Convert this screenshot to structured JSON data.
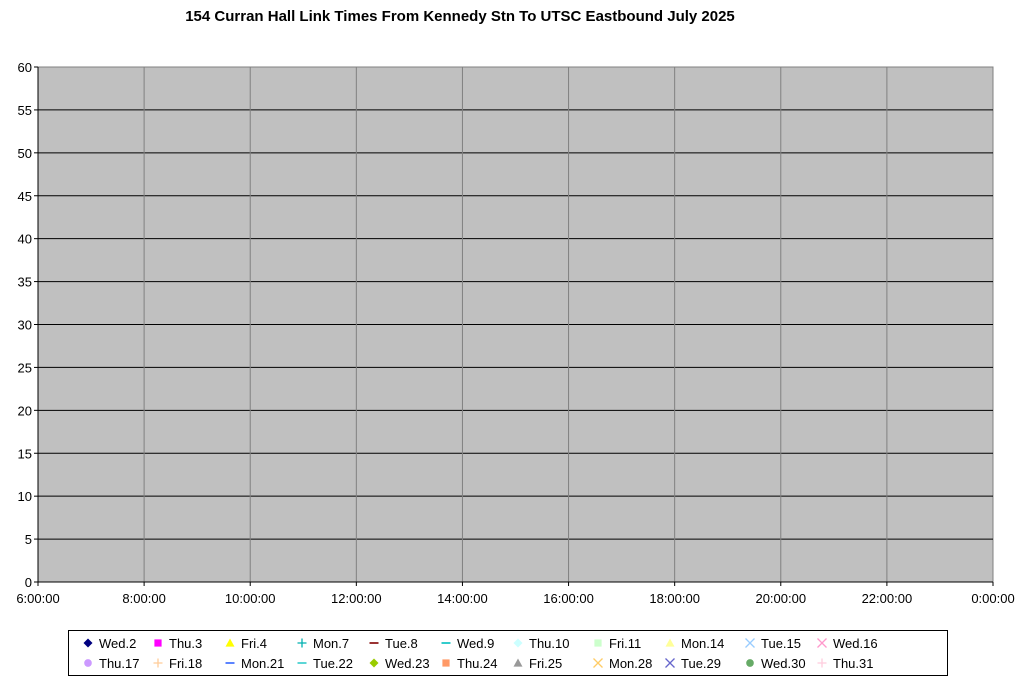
{
  "chart_data": {
    "type": "scatter",
    "title": "154 Curran Hall Link Times From Kennedy Stn To UTSC Eastbound July 2025",
    "xlabel": "",
    "ylabel": "",
    "ylim": [
      0,
      60
    ],
    "yticks": [
      "0",
      "5",
      "10",
      "15",
      "20",
      "25",
      "30",
      "35",
      "40",
      "45",
      "50",
      "55",
      "60"
    ],
    "xlim": [
      "6:00:00",
      "0:00:00"
    ],
    "xticks": [
      "6:00:00",
      "8:00:00",
      "10:00:00",
      "12:00:00",
      "14:00:00",
      "16:00:00",
      "18:00:00",
      "20:00:00",
      "22:00:00",
      "0:00:00"
    ],
    "grid": true,
    "legend_position": "bottom",
    "series": [
      {
        "name": "Wed.2",
        "marker": "diamond",
        "color": "#000080"
      },
      {
        "name": "Thu.3",
        "marker": "square",
        "color": "#ff00ff"
      },
      {
        "name": "Fri.4",
        "marker": "triangle",
        "color": "#ffff00"
      },
      {
        "name": "Mon.7",
        "marker": "plus",
        "color": "#00b0b0"
      },
      {
        "name": "Tue.8",
        "marker": "dash",
        "color": "#800000"
      },
      {
        "name": "Wed.9",
        "marker": "dash",
        "color": "#00c0c0"
      },
      {
        "name": "Thu.10",
        "marker": "diamond",
        "color": "#ccffff"
      },
      {
        "name": "Fri.11",
        "marker": "square",
        "color": "#ccffcc"
      },
      {
        "name": "Mon.14",
        "marker": "triangle",
        "color": "#ffff99"
      },
      {
        "name": "Tue.15",
        "marker": "x",
        "color": "#99ccff"
      },
      {
        "name": "Wed.16",
        "marker": "x",
        "color": "#ff99cc"
      },
      {
        "name": "Thu.17",
        "marker": "circle",
        "color": "#cc99ff"
      },
      {
        "name": "Fri.18",
        "marker": "plus",
        "color": "#ffcc99"
      },
      {
        "name": "Mon.21",
        "marker": "dash",
        "color": "#3366ff"
      },
      {
        "name": "Tue.22",
        "marker": "dash",
        "color": "#33cccc"
      },
      {
        "name": "Wed.23",
        "marker": "diamond",
        "color": "#99cc00"
      },
      {
        "name": "Thu.24",
        "marker": "square",
        "color": "#ff9966"
      },
      {
        "name": "Fri.25",
        "marker": "triangle",
        "color": "#999999"
      },
      {
        "name": "Mon.28",
        "marker": "x",
        "color": "#ffcc66"
      },
      {
        "name": "Tue.29",
        "marker": "x",
        "color": "#6666cc"
      },
      {
        "name": "Wed.30",
        "marker": "circle",
        "color": "#66aa66"
      },
      {
        "name": "Thu.31",
        "marker": "plus",
        "color": "#ffccdd"
      }
    ]
  }
}
